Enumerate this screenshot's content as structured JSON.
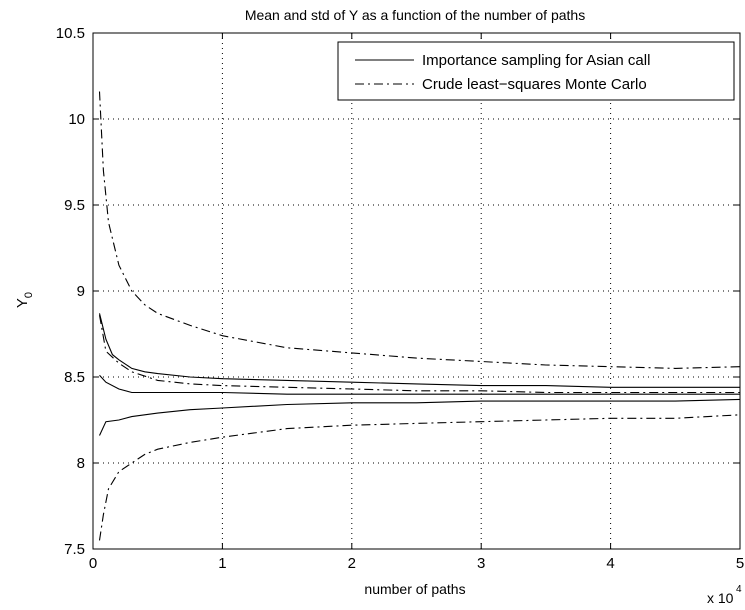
{
  "chart_data": {
    "type": "line",
    "title": "Mean and std of Y as a function of the number of paths",
    "xlabel": "number of paths",
    "ylabel_main": "Y",
    "ylabel_sub": "0",
    "x_multiplier": "x 10",
    "x_multiplier_exp": "4",
    "xlim": [
      0,
      5
    ],
    "ylim": [
      7.5,
      10.5
    ],
    "grid": true,
    "legend_position": "top-right",
    "xticks": [
      "0",
      "1",
      "2",
      "3",
      "4",
      "5"
    ],
    "yticks": [
      "7.5",
      "8",
      "8.5",
      "9",
      "9.5",
      "10",
      "10.5"
    ],
    "legend": [
      {
        "label": "Importance sampling for Asian call",
        "style": "solid"
      },
      {
        "label": "Crude least−squares Monte Carlo",
        "style": "dashdot"
      }
    ],
    "series": [
      {
        "name": "Importance sampling for Asian call",
        "band": "mean",
        "style": "solid",
        "x": [
          0.05,
          0.1,
          0.2,
          0.3,
          0.5,
          0.75,
          1,
          1.5,
          2,
          2.5,
          3,
          3.5,
          4,
          4.5,
          5
        ],
        "y": [
          8.51,
          8.47,
          8.43,
          8.41,
          8.41,
          8.41,
          8.41,
          8.4,
          8.4,
          8.4,
          8.4,
          8.4,
          8.4,
          8.4,
          8.4
        ]
      },
      {
        "band": "mean+std",
        "style": "solid",
        "x": [
          0.05,
          0.1,
          0.15,
          0.2,
          0.3,
          0.4,
          0.5,
          0.75,
          1,
          1.5,
          2,
          2.5,
          3,
          3.5,
          4,
          4.5,
          5
        ],
        "y": [
          8.87,
          8.72,
          8.63,
          8.6,
          8.55,
          8.53,
          8.52,
          8.5,
          8.49,
          8.48,
          8.47,
          8.46,
          8.45,
          8.45,
          8.44,
          8.44,
          8.44
        ]
      },
      {
        "band": "mean-std",
        "style": "solid",
        "x": [
          0.05,
          0.1,
          0.2,
          0.3,
          0.5,
          0.75,
          1,
          1.5,
          2,
          2.5,
          3,
          3.5,
          4,
          4.5,
          5
        ],
        "y": [
          8.16,
          8.24,
          8.25,
          8.27,
          8.29,
          8.31,
          8.32,
          8.34,
          8.35,
          8.35,
          8.36,
          8.36,
          8.36,
          8.36,
          8.37
        ]
      },
      {
        "name": "Crude least−squares Monte Carlo",
        "band": "mean",
        "style": "dashdot",
        "x": [
          0.05,
          0.1,
          0.2,
          0.3,
          0.5,
          0.75,
          1,
          1.5,
          2,
          2.5,
          3,
          3.5,
          4,
          4.5,
          5
        ],
        "y": [
          8.86,
          8.65,
          8.58,
          8.53,
          8.48,
          8.46,
          8.45,
          8.44,
          8.43,
          8.42,
          8.42,
          8.41,
          8.41,
          8.41,
          8.41
        ]
      },
      {
        "band": "mean+std",
        "style": "dashdot",
        "x": [
          0.05,
          0.08,
          0.12,
          0.2,
          0.3,
          0.4,
          0.5,
          0.75,
          1,
          1.5,
          2,
          2.5,
          3,
          3.5,
          4,
          4.5,
          5
        ],
        "y": [
          10.16,
          9.7,
          9.4,
          9.15,
          9.0,
          8.92,
          8.87,
          8.8,
          8.74,
          8.67,
          8.64,
          8.61,
          8.59,
          8.57,
          8.56,
          8.55,
          8.56
        ]
      },
      {
        "band": "mean-std",
        "style": "dashdot",
        "x": [
          0.05,
          0.08,
          0.12,
          0.2,
          0.3,
          0.4,
          0.5,
          0.75,
          1,
          1.5,
          2,
          2.5,
          3,
          3.5,
          4,
          4.5,
          5
        ],
        "y": [
          7.55,
          7.7,
          7.85,
          7.95,
          8.0,
          8.05,
          8.08,
          8.12,
          8.15,
          8.2,
          8.22,
          8.23,
          8.24,
          8.25,
          8.26,
          8.26,
          8.28
        ]
      }
    ]
  }
}
